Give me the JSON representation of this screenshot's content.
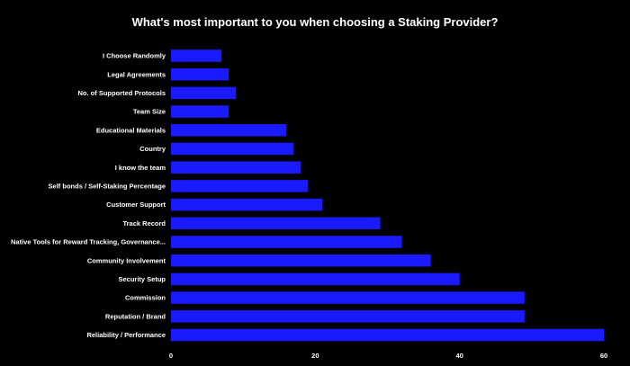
{
  "chart_data": {
    "type": "bar",
    "orientation": "horizontal",
    "title": "What's most important to you when choosing a Staking Provider?",
    "xlabel": "",
    "ylabel": "",
    "categories": [
      "I Choose Randomly",
      "Legal Agreements",
      "No. of Supported Protocols",
      "Team Size",
      "Educational Materials",
      "Country",
      "I know the team",
      "Self bonds / Self-Staking Percentage",
      "Customer Support",
      "Track Record",
      "Native Tools for Reward Tracking, Governance...",
      "Community Involvement",
      "Security Setup",
      "Commission",
      "Reputation / Brand",
      "Reliability / Performance"
    ],
    "values": [
      7,
      8,
      9,
      8,
      16,
      17,
      18,
      19,
      21,
      29,
      32,
      36,
      40,
      49,
      49,
      60
    ],
    "xlim": [
      0,
      60
    ],
    "xticks": [
      0,
      20,
      40,
      60
    ],
    "grid": false,
    "legend": "none",
    "colors": {
      "bar": "#1a1aff",
      "background": "#000000",
      "text": "#ffffff"
    }
  }
}
